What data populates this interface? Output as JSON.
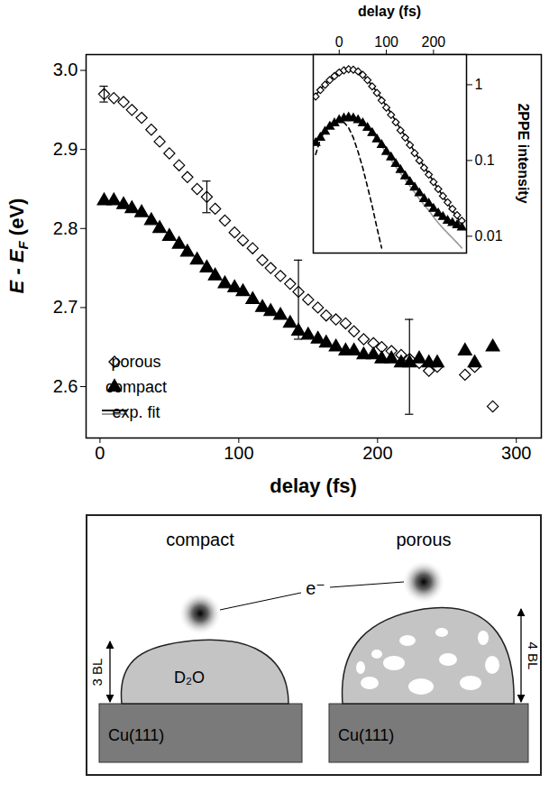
{
  "chart_data": [
    {
      "type": "scatter",
      "xlabel": "delay (fs)",
      "ylabel": "E - EF (eV)",
      "xlim": [
        -10,
        318
      ],
      "ylim": [
        2.535,
        3.02
      ],
      "xticks": [
        0,
        100,
        200,
        300
      ],
      "yticks": [
        {
          "value": 2.6,
          "label": "2.6"
        },
        {
          "value": 2.7,
          "label": "2.7"
        },
        {
          "value": 2.8,
          "label": "2.8"
        },
        {
          "value": 2.9,
          "label": "2.9"
        },
        {
          "value": 3,
          "label": "3.0"
        }
      ],
      "legend": "lower left",
      "x": [
        3,
        10,
        17,
        23,
        30,
        37,
        43,
        50,
        57,
        63,
        70,
        77,
        83,
        90,
        97,
        103,
        110,
        117,
        123,
        130,
        137,
        143,
        150,
        157,
        163,
        170,
        177,
        183,
        190,
        197,
        203,
        210,
        217,
        223,
        230,
        237,
        243,
        263,
        270,
        283
      ],
      "series": [
        {
          "name": "porous",
          "type": "scatter",
          "marker": "open-diamond",
          "color": "#000000",
          "values": [
            2.97,
            2.965,
            2.96,
            2.95,
            2.94,
            2.925,
            2.91,
            2.895,
            2.88,
            2.865,
            2.85,
            2.84,
            2.825,
            2.81,
            2.795,
            2.785,
            2.775,
            2.76,
            2.75,
            2.74,
            2.73,
            2.72,
            2.71,
            2.7,
            2.69,
            2.685,
            2.68,
            2.67,
            2.66,
            2.655,
            2.65,
            2.645,
            2.64,
            2.635,
            2.63,
            2.62,
            2.625,
            2.615,
            2.625,
            2.575
          ],
          "error_bars": [
            {
              "x": 3,
              "y": 2.97,
              "error": 0.01
            },
            {
              "x": 77,
              "y": 2.84,
              "error": 0.02
            },
            {
              "x": 143,
              "y": 2.71,
              "error": 0.05
            },
            {
              "x": 223,
              "y": 2.625,
              "error": 0.06
            }
          ]
        },
        {
          "name": "compact",
          "type": "scatter",
          "marker": "triangle",
          "color": "#000000",
          "values": [
            2.835,
            2.835,
            2.83,
            2.825,
            2.82,
            2.81,
            2.8,
            2.79,
            2.78,
            2.77,
            2.76,
            2.75,
            2.74,
            2.73,
            2.725,
            2.72,
            2.71,
            2.7,
            2.695,
            2.69,
            2.68,
            2.67,
            2.665,
            2.66,
            2.655,
            2.65,
            2.645,
            2.645,
            2.64,
            2.64,
            2.635,
            2.635,
            2.63,
            2.63,
            2.635,
            2.63,
            2.63,
            2.645,
            2.63,
            2.65
          ]
        }
      ]
    },
    {
      "type": "scatter",
      "xlabel": "delay (fs)",
      "ylabel": "2PPE intensity",
      "log": "y",
      "xlim": [
        -55,
        270
      ],
      "ylim": [
        0.006,
        2.5
      ],
      "xticks": [
        0,
        100,
        200
      ],
      "yticks": [
        1,
        0.1,
        0.01
      ],
      "x": [
        -50,
        -40,
        -30,
        -20,
        -10,
        0,
        10,
        20,
        30,
        40,
        50,
        60,
        70,
        80,
        90,
        100,
        110,
        120,
        130,
        140,
        150,
        160,
        170,
        180,
        190,
        200,
        210,
        220,
        230,
        240,
        250,
        260
      ],
      "series": [
        {
          "name": "exp. fit",
          "type": "line",
          "line_style": "solid",
          "color": "#000000",
          "values": [
            0.72,
            0.87,
            1.02,
            1.17,
            1.31,
            1.44,
            1.54,
            1.58,
            1.56,
            1.48,
            1.34,
            1.16,
            0.97,
            0.8,
            0.65,
            0.52,
            0.42,
            0.33,
            0.26,
            0.21,
            0.165,
            0.13,
            0.104,
            0.083,
            0.066,
            0.053,
            0.042,
            0.034,
            0.027,
            0.022,
            0.018,
            0.0145
          ]
        },
        {
          "name": "exp. fit",
          "type": "line",
          "line_style": "solid",
          "color": "#999999",
          "values": [
            0.17,
            0.2,
            0.24,
            0.28,
            0.31,
            0.34,
            0.36,
            0.365,
            0.355,
            0.335,
            0.305,
            0.27,
            0.23,
            0.19,
            0.155,
            0.125,
            0.102,
            0.083,
            0.068,
            0.056,
            0.046,
            0.038,
            0.031,
            0.026,
            0.022,
            0.018,
            0.015,
            0.0128,
            0.011,
            0.0095,
            0.0082,
            0.007
          ]
        },
        {
          "type": "line",
          "line_style": "dashed",
          "color": "#000000",
          "values": [
            0.12,
            0.19,
            0.25,
            0.3,
            0.33,
            0.34,
            0.32,
            0.27,
            0.2,
            0.13,
            0.08,
            0.045,
            0.025,
            0.013,
            0.007,
            null,
            null,
            null,
            null,
            null,
            null,
            null,
            null,
            null,
            null,
            null,
            null,
            null,
            null,
            null,
            null,
            null
          ]
        },
        {
          "name": "porous",
          "type": "scatter",
          "marker": "open-diamond",
          "color": "#000000",
          "values": [
            0.7,
            0.85,
            1.0,
            1.15,
            1.3,
            1.45,
            1.55,
            1.6,
            1.58,
            1.5,
            1.35,
            1.15,
            0.95,
            0.78,
            0.62,
            0.5,
            0.4,
            0.32,
            0.25,
            0.2,
            0.16,
            0.125,
            0.1,
            0.08,
            0.065,
            0.052,
            0.042,
            0.034,
            0.028,
            0.023,
            0.019,
            0.016
          ]
        },
        {
          "name": "compact",
          "type": "scatter",
          "marker": "triangle",
          "color": "#000000",
          "values": [
            0.17,
            0.2,
            0.24,
            0.28,
            0.31,
            0.34,
            0.36,
            0.37,
            0.36,
            0.34,
            0.31,
            0.27,
            0.23,
            0.19,
            0.16,
            0.13,
            0.11,
            0.09,
            0.075,
            0.062,
            0.052,
            0.044,
            0.037,
            0.031,
            0.027,
            0.023,
            0.02,
            0.018,
            0.016,
            0.015,
            0.014,
            0.013
          ]
        }
      ]
    }
  ],
  "diagram": {
    "electron_label": "e⁻",
    "panels": [
      {
        "title": "compact",
        "substrate": "Cu(111)",
        "layer": "D₂O",
        "thickness": "3 BL"
      },
      {
        "title": "porous",
        "substrate": "Cu(111)",
        "thickness": "4 BL"
      }
    ]
  }
}
